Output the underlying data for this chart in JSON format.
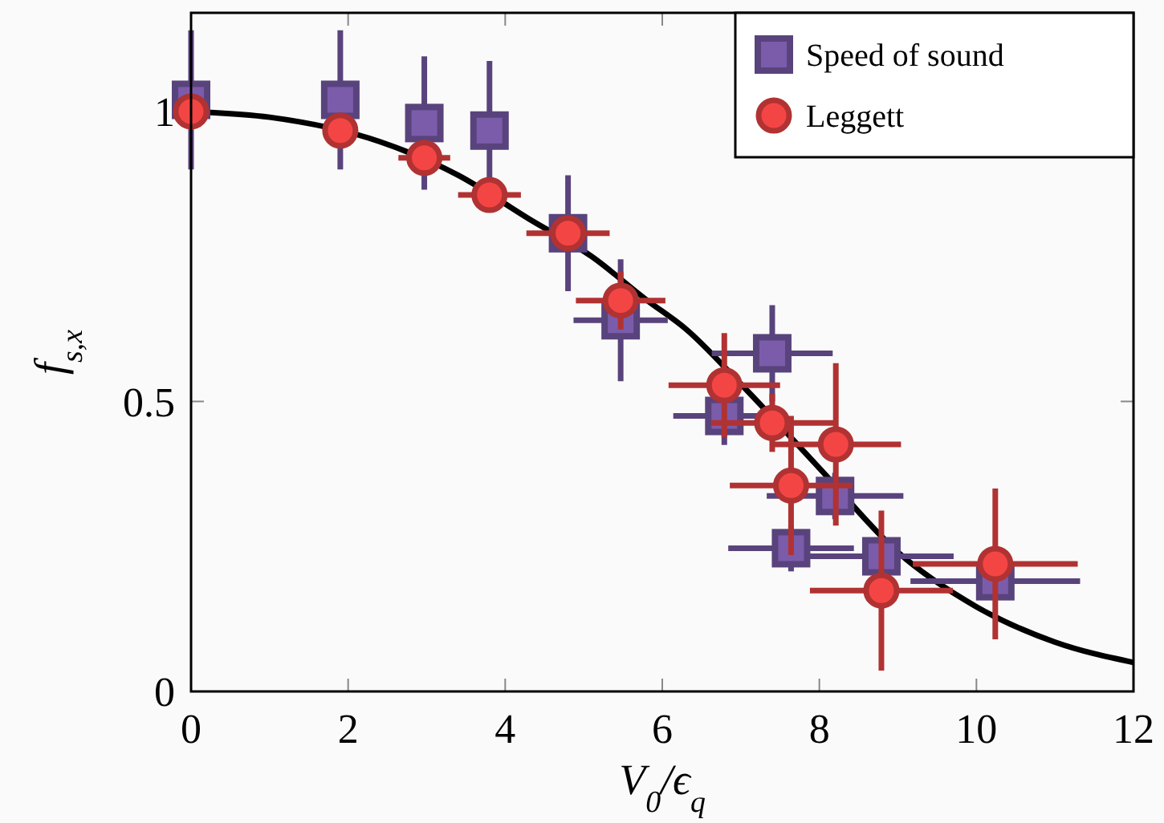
{
  "chart_data": {
    "type": "scatter",
    "xlabel": "V$_{0}$/ϵ$_{q}$",
    "ylabel": "f$_{s,x}$",
    "xlim": [
      0,
      12
    ],
    "ylim": [
      0,
      1.17
    ],
    "xticks": [
      0,
      2,
      4,
      6,
      8,
      10,
      12
    ],
    "yticks": [
      0,
      0.5,
      1
    ],
    "grid": false,
    "legend": "top right",
    "series": [
      {
        "type": "line",
        "color": "#000000",
        "marker": "none",
        "line_style": "solid",
        "x": [
          0,
          1,
          2.4,
          3.4,
          4.3,
          5.1,
          5.8,
          6.3,
          7,
          8,
          9,
          10,
          11,
          12
        ],
        "values": [
          1,
          0.99,
          0.948,
          0.89,
          0.815,
          0.75,
          0.675,
          0.625,
          0.53,
          0.385,
          0.24,
          0.146,
          0.085,
          0.05
        ]
      },
      {
        "name": "Speed of sound",
        "color": "#7b5cab",
        "marker": "square",
        "x": [
          0,
          1.9,
          2.97,
          3.8,
          4.8,
          5.47,
          7.4,
          6.79,
          8.2,
          7.64,
          8.79,
          10.24
        ],
        "values": [
          1.02,
          1.02,
          0.98,
          0.967,
          0.79,
          0.64,
          0.583,
          0.475,
          0.337,
          0.247,
          0.233,
          0.19
        ],
        "errors": [
          0.12,
          0.12,
          0.115,
          0.12,
          0.1,
          0.105,
          0.083,
          0.05,
          0.04,
          0.04,
          null,
          null
        ],
        "xerrors": [
          null,
          null,
          null,
          null,
          null,
          0.6,
          0.77,
          0.65,
          0.87,
          0.8,
          0.92,
          1.08
        ]
      },
      {
        "name": "Leggett",
        "color": "#f44545",
        "marker": "circle",
        "x": [
          0,
          1.9,
          2.97,
          3.8,
          4.8,
          5.47,
          6.79,
          7.4,
          8.21,
          7.64,
          8.79,
          10.24
        ],
        "values": [
          1,
          0.967,
          0.92,
          0.856,
          0.79,
          0.674,
          0.528,
          0.463,
          0.426,
          0.355,
          0.174,
          0.22
        ],
        "errors": [
          null,
          null,
          null,
          null,
          null,
          0.05,
          0.09,
          0.05,
          0.14,
          0.12,
          0.138,
          0.13
        ],
        "xerrors": [
          null,
          null,
          0.33,
          0.4,
          0.53,
          0.57,
          0.71,
          0.78,
          0.83,
          0.78,
          0.91,
          1.05
        ]
      }
    ]
  }
}
